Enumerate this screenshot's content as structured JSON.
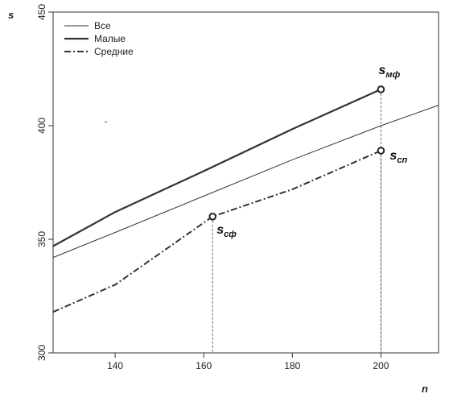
{
  "chart_data": {
    "type": "line",
    "xlabel": "n",
    "ylabel": "s",
    "xlim": [
      126,
      213
    ],
    "ylim": [
      300,
      450
    ],
    "x_ticks": [
      140,
      160,
      180,
      200
    ],
    "y_ticks": [
      300,
      350,
      400,
      450
    ],
    "legend_position": "top-left",
    "series": [
      {
        "name": "Все",
        "style": "thin",
        "color": "#333333",
        "x": [
          126,
          140,
          160,
          180,
          200,
          213
        ],
        "y": [
          342,
          353,
          369,
          385,
          400,
          409
        ]
      },
      {
        "name": "Малые",
        "style": "thick",
        "color": "#333333",
        "x": [
          126,
          140,
          160,
          180,
          200
        ],
        "y": [
          347,
          362,
          380,
          398.5,
          416
        ]
      },
      {
        "name": "Средние",
        "style": "dashdot",
        "color": "#333333",
        "x": [
          126,
          140,
          162,
          180,
          200
        ],
        "y": [
          318,
          330,
          360,
          372,
          389
        ]
      }
    ],
    "markers": [
      {
        "x": 200,
        "y": 416,
        "sym": "s",
        "sub": "мф",
        "pos": "above"
      },
      {
        "x": 200,
        "y": 389,
        "sym": "s",
        "sub": "сп",
        "pos": "right"
      },
      {
        "x": 162,
        "y": 360,
        "sym": "s",
        "sub": "сф",
        "pos": "below-right"
      }
    ]
  }
}
